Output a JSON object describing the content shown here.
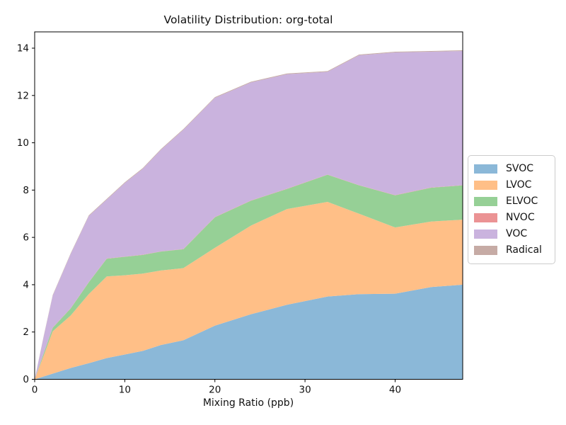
{
  "title": "Volatility Distribution: org-total",
  "xlabel": "Mixing Ratio (ppb)",
  "axes": {
    "x_ticks": [
      0,
      10,
      20,
      30,
      40
    ],
    "y_ticks": [
      0,
      2,
      4,
      6,
      8,
      10,
      12,
      14
    ],
    "x_range": [
      0,
      47.5
    ],
    "y_range": [
      0,
      14.68
    ],
    "grid": false
  },
  "legend": {
    "position": "center-right-outside",
    "items": [
      {
        "label": "SVOC",
        "color": "#8BB8D8"
      },
      {
        "label": "LVOC",
        "color": "#FFBF87"
      },
      {
        "label": "ELVOC",
        "color": "#96D096"
      },
      {
        "label": "NVOC",
        "color": "#EB9394"
      },
      {
        "label": "VOC",
        "color": "#CAB3DE"
      },
      {
        "label": "Radical",
        "color": "#C6ABA5"
      }
    ]
  },
  "chart_data": {
    "type": "area",
    "stacked": true,
    "title": "Volatility Distribution: org-total",
    "xlabel": "Mixing Ratio (ppb)",
    "ylabel": "",
    "xlim": [
      0,
      47.5
    ],
    "ylim": [
      0,
      14.68
    ],
    "grid": false,
    "legend_position": "center left, outside right edge",
    "x": [
      0,
      1,
      2,
      4,
      6,
      8,
      10,
      12,
      14,
      16.5,
      20,
      24,
      28,
      32.5,
      36,
      40,
      44,
      47.5
    ],
    "series": [
      {
        "name": "SVOC",
        "color": "#8BB8D8",
        "values": [
          0,
          0.12,
          0.24,
          0.48,
          0.68,
          0.9,
          1.05,
          1.2,
          1.45,
          1.65,
          2.27,
          2.75,
          3.15,
          3.5,
          3.6,
          3.62,
          3.9,
          4.0
        ]
      },
      {
        "name": "LVOC",
        "color": "#FFBF87",
        "values": [
          0,
          0.88,
          1.79,
          2.22,
          2.92,
          3.45,
          3.35,
          3.27,
          3.15,
          3.05,
          3.29,
          3.75,
          4.05,
          4.0,
          3.4,
          2.8,
          2.77,
          2.75
        ]
      },
      {
        "name": "ELVOC",
        "color": "#96D096",
        "values": [
          0,
          0.1,
          0.15,
          0.3,
          0.5,
          0.75,
          0.78,
          0.79,
          0.8,
          0.8,
          1.29,
          1.05,
          0.85,
          1.15,
          1.2,
          1.36,
          1.43,
          1.45
        ]
      },
      {
        "name": "NVOC",
        "color": "#EB9394",
        "values": [
          0,
          0.01,
          0.01,
          0.01,
          0.01,
          0.01,
          0.01,
          0.01,
          0.01,
          0.01,
          0.01,
          0.01,
          0.01,
          0.01,
          0.01,
          0.01,
          0.01,
          0.01
        ]
      },
      {
        "name": "VOC",
        "color": "#CAB3DE",
        "values": [
          0,
          0.69,
          1.34,
          2.29,
          2.79,
          2.49,
          3.11,
          3.63,
          4.29,
          5.04,
          5.04,
          4.99,
          4.84,
          4.34,
          5.49,
          6.03,
          5.74,
          5.67
        ]
      },
      {
        "name": "Radical",
        "color": "#C6ABA5",
        "values": [
          0,
          0.03,
          0.03,
          0.03,
          0.03,
          0.03,
          0.03,
          0.03,
          0.03,
          0.03,
          0.03,
          0.03,
          0.03,
          0.03,
          0.03,
          0.03,
          0.03,
          0.03
        ]
      }
    ]
  }
}
